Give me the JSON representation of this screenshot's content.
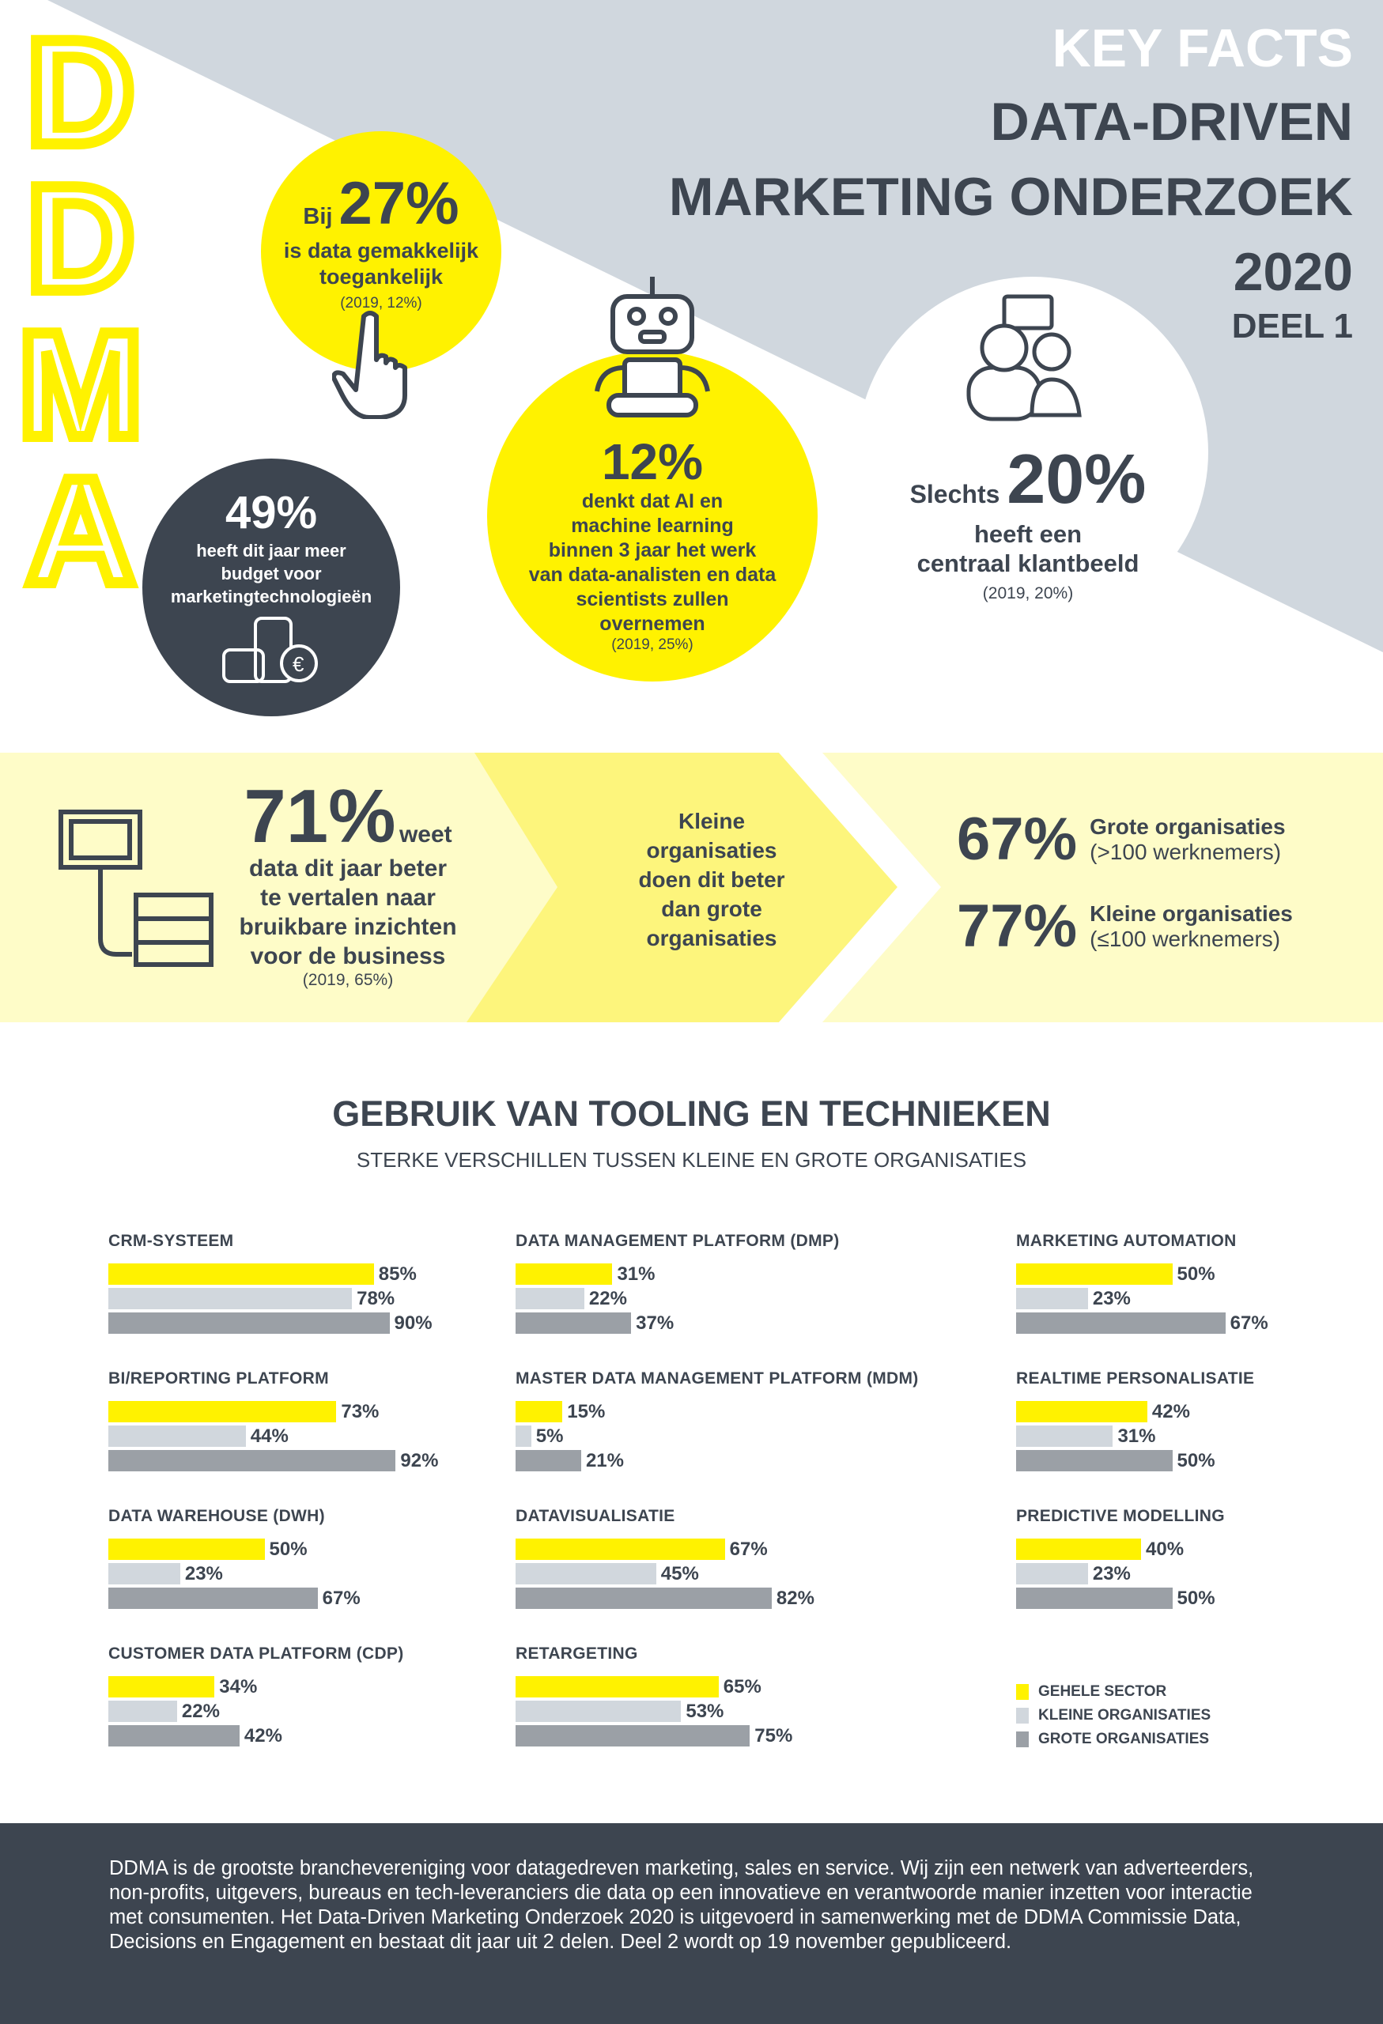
{
  "logo": "DDMA",
  "header": {
    "line1": "KEY FACTS",
    "line2": "DATA-DRIVEN",
    "line3": "MARKETING ONDERZOEK",
    "year": "2020",
    "part": "DEEL 1"
  },
  "facts": {
    "easy_access": {
      "prefix": "Bij",
      "value": "27%",
      "text1": "is data gemakkelijk",
      "text2": "toegankelijk",
      "prev": "(2019, 12%)",
      "icon": "hand-pointer-icon"
    },
    "budget": {
      "value": "49%",
      "text1": "heeft dit jaar meer",
      "text2": "budget voor",
      "text3": "marketingtechnologieën",
      "icon": "coins-euro-icon"
    },
    "ai": {
      "value": "12%",
      "lines": [
        "denkt dat AI en",
        "machine learning",
        "binnen 3 jaar het werk",
        "van data-analisten en data",
        "scientists zullen",
        "overnemen"
      ],
      "prev": "(2019, 25%)",
      "icon": "robot-icon"
    },
    "customer_view": {
      "prefix": "Slechts",
      "value": "20%",
      "text1": "heeft een",
      "text2": "centraal klantbeeld",
      "prev": "(2019, 20%)",
      "icon": "people-chat-icon"
    }
  },
  "band": {
    "value": "71%",
    "suffix": "weet",
    "lines": [
      "data dit jaar beter",
      "te vertalen naar",
      "bruikbare inzichten",
      "voor de business"
    ],
    "prev": "(2019, 65%)",
    "middle": [
      "Kleine",
      "organisaties",
      "doen dit beter",
      "dan grote",
      "organisaties"
    ],
    "big": {
      "value": "67%",
      "label": "Grote organisaties",
      "sub": "(>100 werknemers)"
    },
    "small": {
      "value": "77%",
      "label": "Kleine organisaties",
      "sub": "(≤100 werknemers)"
    }
  },
  "tooling": {
    "title": "GEBRUIK VAN TOOLING EN TECHNIEKEN",
    "subtitle": "STERKE VERSCHILLEN TUSSEN KLEINE EN GROTE ORGANISATIES"
  },
  "chart_data": {
    "type": "bar",
    "orientation": "horizontal",
    "unit": "%",
    "categories": [
      "CRM-SYSTEEM",
      "BI/REPORTING PLATFORM",
      "DATA WAREHOUSE (DWH)",
      "CUSTOMER DATA PLATFORM (CDP)",
      "DATA MANAGEMENT PLATFORM (DMP)",
      "MASTER DATA MANAGEMENT PLATFORM (MDM)",
      "DATAVISUALISATIE",
      "RETARGETING",
      "MARKETING AUTOMATION",
      "REALTIME PERSONALISATIE",
      "PREDICTIVE MODELLING"
    ],
    "series": [
      {
        "name": "GEHELE SECTOR",
        "color": "#fff200",
        "values": [
          85,
          73,
          50,
          34,
          31,
          15,
          67,
          65,
          50,
          42,
          40
        ]
      },
      {
        "name": "KLEINE ORGANISATIES",
        "color": "#d1d7dd",
        "values": [
          78,
          44,
          23,
          22,
          22,
          5,
          45,
          53,
          23,
          31,
          23
        ]
      },
      {
        "name": "GROTE ORGANISATIES",
        "color": "#9ba0a6",
        "values": [
          90,
          92,
          67,
          42,
          37,
          21,
          82,
          75,
          67,
          50,
          50
        ]
      }
    ],
    "legend": "bottom-right"
  },
  "footer": {
    "text": "DDMA is de grootste branchevereniging voor datagedreven marketing, sales en service. Wij zijn een netwerk van adverteerders, non-profits, uitgevers, bureaus en tech-leveranciers die data op een innovatieve en verantwoorde manier inzetten voor interactie met consumenten. Het Data-Driven Marketing Onderzoek 2020 is uitgevoerd in samenwerking met de DDMA Commissie Data, Decisions en Engagement en bestaat dit jaar uit 2 delen. Deel 2 wordt op 19 november gepubliceerd."
  },
  "colors": {
    "yellow": "#fff200",
    "dark": "#3d4550",
    "gray_bg": "#d0d7de",
    "band": "#fdfbc6"
  }
}
